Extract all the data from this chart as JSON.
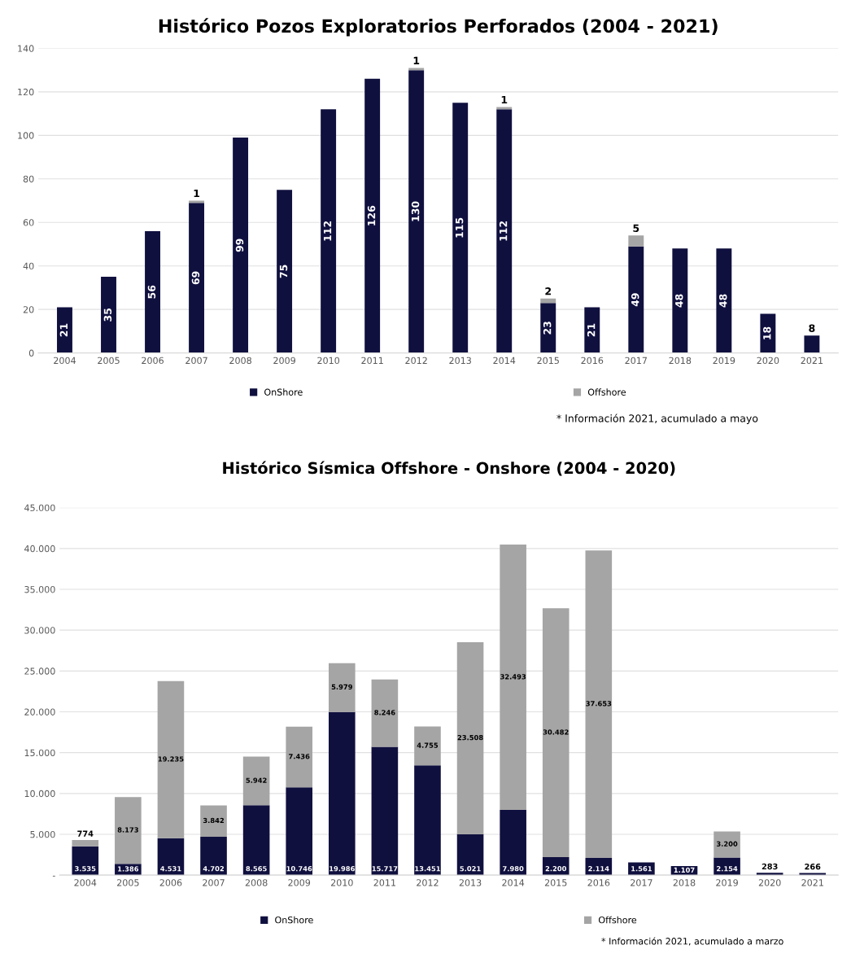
{
  "chart_data": [
    {
      "type": "bar",
      "title": "Histórico Pozos Exploratorios Perforados (2004 - 2021)",
      "stacked": true,
      "categories": [
        "2004",
        "2005",
        "2006",
        "2007",
        "2008",
        "2009",
        "2010",
        "2011",
        "2012",
        "2013",
        "2014",
        "2015",
        "2016",
        "2017",
        "2018",
        "2019",
        "2020",
        "2021"
      ],
      "series": [
        {
          "name": "OnShore",
          "color": "#10103f",
          "values": [
            21,
            35,
            56,
            69,
            99,
            75,
            112,
            126,
            130,
            115,
            112,
            23,
            21,
            49,
            48,
            48,
            18,
            8
          ],
          "value_labels": [
            "21",
            "35",
            "56",
            "69",
            "99",
            "75",
            "112",
            "126",
            "130",
            "115",
            "112",
            "23",
            "21",
            "49",
            "48",
            "48",
            "18",
            "8"
          ]
        },
        {
          "name": "Offshore",
          "color": "#a5a5a5",
          "values": [
            null,
            null,
            null,
            1,
            null,
            null,
            null,
            null,
            1,
            null,
            1,
            2,
            null,
            5,
            null,
            null,
            null,
            null
          ],
          "value_labels": [
            null,
            null,
            null,
            "1",
            null,
            null,
            null,
            null,
            "1",
            null,
            "1",
            "2",
            null,
            "5",
            null,
            null,
            null,
            null
          ]
        }
      ],
      "ylim": [
        0,
        140
      ],
      "yticks": [
        0,
        20,
        40,
        60,
        80,
        100,
        120,
        140
      ],
      "grid": "y",
      "legend": "bottom",
      "annotations": [
        "* Información 2021, acumulado a mayo"
      ]
    },
    {
      "type": "bar",
      "title": "Histórico Sísmica Offshore - Onshore (2004 - 2020)",
      "stacked": true,
      "categories": [
        "2004",
        "2005",
        "2006",
        "2007",
        "2008",
        "2009",
        "2010",
        "2011",
        "2012",
        "2013",
        "2014",
        "2015",
        "2016",
        "2017",
        "2018",
        "2019",
        "2020",
        "2021"
      ],
      "series": [
        {
          "name": "OnShore",
          "color": "#10103f",
          "values": [
            3535,
            1386,
            4531,
            4702,
            8565,
            10746,
            19986,
            15717,
            13451,
            5021,
            7980,
            2200,
            2114,
            1561,
            1107,
            2154,
            283,
            266
          ],
          "value_labels": [
            "3.535",
            "1.386",
            "4.531",
            "4.702",
            "8.565",
            "10.746",
            "19.986",
            "15.717",
            "13.451",
            "5.021",
            "7.980",
            "2.200",
            "2.114",
            "1.561",
            "1.107",
            "2.154",
            "283",
            "266"
          ]
        },
        {
          "name": "Offshore",
          "color": "#a5a5a5",
          "values": [
            774,
            8173,
            19235,
            3842,
            5942,
            7436,
            5979,
            8246,
            4755,
            23508,
            32493,
            30482,
            37653,
            null,
            null,
            3200,
            null,
            null
          ],
          "value_labels": [
            "774",
            "8.173",
            "19.235",
            "3.842",
            "5.942",
            "7.436",
            "5.979",
            "8.246",
            "4.755",
            "23.508",
            "32.493",
            "30.482",
            "37.653",
            null,
            null,
            "3.200",
            null,
            null
          ]
        }
      ],
      "ylim": [
        0,
        45000
      ],
      "yticks": [
        {
          "value": 0,
          "label": "-"
        },
        {
          "value": 5000,
          "label": "5.000"
        },
        {
          "value": 10000,
          "label": "10.000"
        },
        {
          "value": 15000,
          "label": "15.000"
        },
        {
          "value": 20000,
          "label": "20.000"
        },
        {
          "value": 25000,
          "label": "25.000"
        },
        {
          "value": 30000,
          "label": "30.000"
        },
        {
          "value": 35000,
          "label": "35.000"
        },
        {
          "value": 40000,
          "label": "40.000"
        },
        {
          "value": 45000,
          "label": "45.000"
        }
      ],
      "grid": "y",
      "legend": "bottom",
      "annotations": [
        "* Información 2021, acumulado a marzo"
      ]
    }
  ]
}
